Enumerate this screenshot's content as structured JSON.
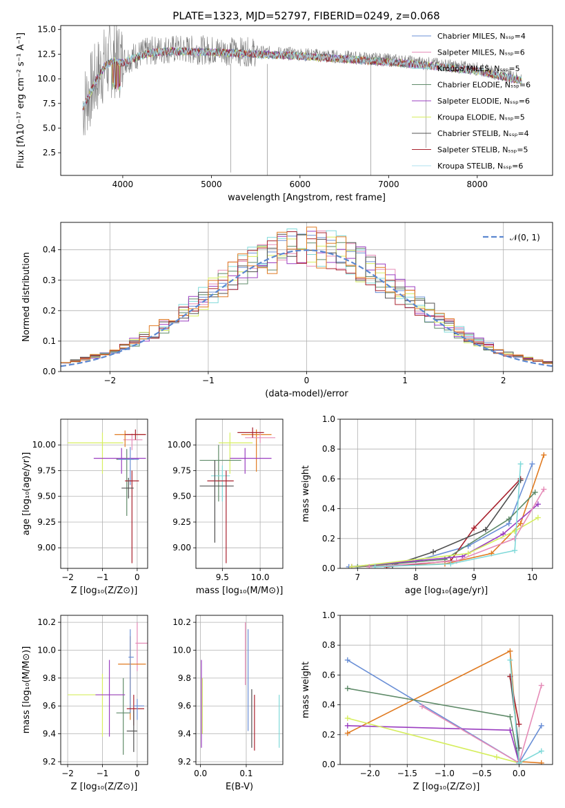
{
  "title": "PLATE=1323, MJD=52797, FIBERID=0249, z=0.068",
  "colors": [
    "#6a8fd6",
    "#e58bb7",
    "#7fd9d9",
    "#5e8a68",
    "#9a3cc0",
    "#d6ee5e",
    "#505050",
    "#a8202c",
    "#aee0ef",
    "#e07a20",
    "#7a7a7a",
    "#f09090"
  ],
  "chart_data": [
    {
      "id": "spectrum",
      "type": "line",
      "title": "PLATE=1323, MJD=52797, FIBERID=0249, z=0.068",
      "xlabel": "wavelength [Angstrom, rest frame]",
      "ylabel": "Flux [fλ10⁻¹⁷ erg cm⁻² s⁻¹ A⁻¹]",
      "xlim": [
        3300,
        8850
      ],
      "ylim": [
        0.2,
        15.4
      ],
      "xticks": [
        4000,
        5000,
        6000,
        7000,
        8000
      ],
      "yticks": [
        2.5,
        5.0,
        7.5,
        10.0,
        12.5,
        15.0
      ],
      "ytick_labels": [
        "2.5",
        "5.0",
        "7.5",
        "10.0",
        "12.5",
        "15.0"
      ],
      "grid": false,
      "legend_placement": "top-right",
      "x_range": [
        3550,
        8500
      ],
      "continuum": {
        "x": [
          3550,
          3620,
          3700,
          3800,
          3900,
          4000,
          4100,
          4300,
          4500,
          5000,
          5500,
          6000,
          6500,
          7000,
          7500,
          8000,
          8500
        ],
        "y": [
          7.2,
          8.5,
          10.0,
          11.5,
          12.0,
          11.8,
          12.2,
          12.8,
          13.0,
          12.9,
          12.7,
          12.5,
          12.2,
          11.9,
          11.5,
          11.0,
          10.0
        ]
      },
      "series": [
        {
          "name": "Chabrier MILES, Nₛₛₚ=4",
          "color": "#6a8fd6"
        },
        {
          "name": "Salpeter MILES, Nₛₛₚ=6",
          "color": "#e58bb7"
        },
        {
          "name": "Kroupa MILES, Nₛₛₚ=5",
          "color": "#7fd9d9"
        },
        {
          "name": "Chabrier ELODIE, Nₛₛₚ=6",
          "color": "#5e8a68"
        },
        {
          "name": "Salpeter ELODIE, Nₛₛₚ=6",
          "color": "#9a3cc0"
        },
        {
          "name": "Kroupa ELODIE, Nₛₛₚ=5",
          "color": "#d6ee5e"
        },
        {
          "name": "Chabrier STELIB, Nₛₛₚ=4",
          "color": "#505050"
        },
        {
          "name": "Salpeter STELIB, Nₛₛₚ=5",
          "color": "#a8202c"
        },
        {
          "name": "Kroupa STELIB, Nₛₛₚ=6",
          "color": "#aee0ef"
        }
      ],
      "data_series": {
        "color": "#7a7a7a"
      }
    },
    {
      "id": "residuals",
      "type": "histogram",
      "xlabel": "(data-model)/error",
      "ylabel": "Normed distribution",
      "xlim": [
        -2.5,
        2.5
      ],
      "ylim": [
        0,
        0.49
      ],
      "xticks": [
        -2,
        -1,
        0,
        1,
        2
      ],
      "xtick_labels": [
        "−2",
        "−1",
        "0",
        "1",
        "2"
      ],
      "yticks": [
        0.0,
        0.1,
        0.2,
        0.3,
        0.4
      ],
      "ytick_labels": [
        "0.0",
        "0.1",
        "0.2",
        "0.3",
        "0.4"
      ],
      "grid": true,
      "legend_placement": "top-right",
      "legend": [
        "𝒩(0, 1)"
      ],
      "bin_width": 0.1,
      "bin_range": [
        -2.5,
        2.5
      ],
      "series_colors": [
        "#6a8fd6",
        "#e58bb7",
        "#7fd9d9",
        "#5e8a68",
        "#9a3cc0",
        "#d6ee5e",
        "#505050",
        "#a8202c",
        "#e07a20"
      ]
    },
    {
      "id": "age_vs_Z",
      "type": "errorbar",
      "xlabel": "Z [log₁₀(Z/Z⊙)]",
      "ylabel": "age  [log₁₀(age/yr)]",
      "xlim": [
        -2.2,
        0.3
      ],
      "ylim": [
        8.8,
        10.25
      ],
      "xticks": [
        -2,
        -1,
        0
      ],
      "xtick_labels": [
        "−2",
        "−1",
        "0"
      ],
      "yticks": [
        9.0,
        9.25,
        9.5,
        9.75,
        10.0
      ],
      "ytick_labels": [
        "9.00",
        "9.25",
        "9.50",
        "9.75",
        "10.00"
      ],
      "grid": true,
      "points": [
        {
          "x": -0.15,
          "y": 10.05,
          "xerr": [
            0.25,
            0.3
          ],
          "yerr": [
            0.1,
            0.06
          ],
          "color": "#e58bb7"
        },
        {
          "x": -0.35,
          "y": 10.1,
          "xerr": [
            0.3,
            0.6
          ],
          "yerr": [
            0.12,
            0.04
          ],
          "color": "#e07a20"
        },
        {
          "x": -0.05,
          "y": 10.1,
          "xerr": [
            0.3,
            0.3
          ],
          "yerr": [
            0.05,
            0.05
          ],
          "color": "#a8202c"
        },
        {
          "x": -1.0,
          "y": 10.02,
          "xerr": [
            1.0,
            0.6
          ],
          "yerr": [
            0.3,
            0.1
          ],
          "color": "#d6ee5e"
        },
        {
          "x": -0.45,
          "y": 9.87,
          "xerr": [
            0.8,
            0.7
          ],
          "yerr": [
            0.15,
            0.1
          ],
          "color": "#9a3cc0"
        },
        {
          "x": -0.3,
          "y": 9.86,
          "xerr": [
            0.3,
            0.2
          ],
          "yerr": [
            0.55,
            0.1
          ],
          "color": "#5e8a68"
        },
        {
          "x": -0.2,
          "y": 9.86,
          "xerr": [
            0.35,
            0.25
          ],
          "yerr": [
            0.25,
            0.12
          ],
          "color": "#6a8fd6"
        },
        {
          "x": -0.15,
          "y": 9.65,
          "xerr": [
            0.2,
            0.2
          ],
          "yerr": [
            0.8,
            0.1
          ],
          "color": "#a8202c"
        },
        {
          "x": -0.25,
          "y": 9.58,
          "xerr": [
            0.2,
            0.15
          ],
          "yerr": [
            0.1,
            0.1
          ],
          "color": "#505050"
        }
      ]
    },
    {
      "id": "age_vs_mass",
      "type": "errorbar",
      "xlabel": "mass [log₁₀(M/M⊙)]",
      "xlim": [
        9.15,
        10.3
      ],
      "ylim": [
        8.8,
        10.25
      ],
      "xticks": [
        9.5,
        10.0
      ],
      "xtick_labels": [
        "9.5",
        "10.0"
      ],
      "yticks": [
        9.0,
        9.25,
        9.5,
        9.75,
        10.0
      ],
      "ytick_labels": [
        "9.00",
        "9.25",
        "9.50",
        "9.75",
        "10.00"
      ],
      "grid": true,
      "points": [
        {
          "x": 9.95,
          "y": 10.1,
          "xerr": [
            0.2,
            0.2
          ],
          "yerr": [
            0.36,
            0.05
          ],
          "color": "#e07a20"
        },
        {
          "x": 10.0,
          "y": 10.07,
          "xerr": [
            0.2,
            0.2
          ],
          "yerr": [
            0.05,
            0.05
          ],
          "color": "#e58bb7"
        },
        {
          "x": 9.9,
          "y": 10.12,
          "xerr": [
            0.2,
            0.15
          ],
          "yerr": [
            0.05,
            0.05
          ],
          "color": "#a8202c"
        },
        {
          "x": 9.6,
          "y": 10.02,
          "xerr": [
            0.15,
            0.3
          ],
          "yerr": [
            0.3,
            0.1
          ],
          "color": "#d6ee5e"
        },
        {
          "x": 9.8,
          "y": 9.87,
          "xerr": [
            0.2,
            0.35
          ],
          "yerr": [
            0.15,
            0.1
          ],
          "color": "#9a3cc0"
        },
        {
          "x": 9.45,
          "y": 9.85,
          "xerr": [
            0.25,
            0.3
          ],
          "yerr": [
            0.4,
            0.15
          ],
          "color": "#5e8a68"
        },
        {
          "x": 9.5,
          "y": 9.7,
          "xerr": [
            0.15,
            0.1
          ],
          "yerr": [
            0.25,
            0.1
          ],
          "color": "#7fd9d9"
        },
        {
          "x": 9.55,
          "y": 9.65,
          "xerr": [
            0.25,
            0.1
          ],
          "yerr": [
            0.8,
            0.1
          ],
          "color": "#a8202c"
        },
        {
          "x": 9.4,
          "y": 9.6,
          "xerr": [
            0.2,
            0.25
          ],
          "yerr": [
            0.55,
            0.25
          ],
          "color": "#505050"
        }
      ]
    },
    {
      "id": "mass_weight_vs_age",
      "type": "line",
      "xlabel": "age  [log₁₀(age/yr)]",
      "ylabel": "mass weight",
      "xlim": [
        6.7,
        10.35
      ],
      "ylim": [
        0.0,
        1.0
      ],
      "xticks": [
        7,
        8,
        9,
        10
      ],
      "xtick_labels": [
        "7",
        "8",
        "9",
        "10"
      ],
      "yticks": [
        0.0,
        0.2,
        0.4,
        0.6,
        0.8,
        1.0
      ],
      "ytick_labels": [
        "0.0",
        "0.2",
        "0.4",
        "0.6",
        "0.8",
        "1.0"
      ],
      "grid": true,
      "series": [
        {
          "color": "#6a8fd6",
          "x": [
            6.85,
            8.0,
            8.9,
            9.6,
            10.0
          ],
          "y": [
            0.01,
            0.05,
            0.15,
            0.3,
            0.7
          ]
        },
        {
          "color": "#e07a20",
          "x": [
            6.9,
            8.5,
            9.3,
            9.8,
            10.2
          ],
          "y": [
            0.01,
            0.03,
            0.1,
            0.3,
            0.76
          ]
        },
        {
          "color": "#a8202c",
          "x": [
            7.5,
            8.6,
            9.0,
            9.8
          ],
          "y": [
            0.01,
            0.05,
            0.27,
            0.6
          ]
        },
        {
          "color": "#505050",
          "x": [
            7.6,
            8.3,
            9.2,
            9.8
          ],
          "y": [
            0.02,
            0.11,
            0.26,
            0.59
          ]
        },
        {
          "color": "#5e8a68",
          "x": [
            7.0,
            8.5,
            9.6,
            10.05
          ],
          "y": [
            0.01,
            0.06,
            0.33,
            0.51
          ]
        },
        {
          "color": "#9a3cc0",
          "x": [
            6.9,
            8.8,
            9.5,
            10.1
          ],
          "y": [
            0.01,
            0.08,
            0.23,
            0.43
          ]
        },
        {
          "color": "#d6ee5e",
          "x": [
            6.9,
            8.9,
            9.7,
            10.1
          ],
          "y": [
            0.01,
            0.1,
            0.25,
            0.34
          ]
        },
        {
          "color": "#e58bb7",
          "x": [
            7.2,
            8.7,
            9.7,
            10.2
          ],
          "y": [
            0.01,
            0.05,
            0.2,
            0.53
          ]
        },
        {
          "color": "#7fd9d9",
          "x": [
            7.3,
            8.6,
            9.7,
            9.8
          ],
          "y": [
            0.01,
            0.03,
            0.12,
            0.7
          ]
        }
      ]
    },
    {
      "id": "mass_vs_Z",
      "type": "errorbar",
      "xlabel": "Z [log₁₀(Z/Z⊙)]",
      "ylabel": "mass [log₁₀(M/M⊙)]",
      "xlim": [
        -2.2,
        0.3
      ],
      "ylim": [
        9.18,
        10.25
      ],
      "xticks": [
        -2,
        -1,
        0
      ],
      "xtick_labels": [
        "−2",
        "−1",
        "0"
      ],
      "yticks": [
        9.2,
        9.4,
        9.6,
        9.8,
        10.0,
        10.2
      ],
      "ytick_labels": [
        "9.2",
        "9.4",
        "9.6",
        "9.8",
        "10.0",
        "10.2"
      ],
      "grid": true,
      "points": [
        {
          "x": 0.0,
          "y": 10.05,
          "xerr": [
            0.05,
            0.3
          ],
          "yerr": [
            0.2,
            0.15
          ],
          "color": "#e58bb7"
        },
        {
          "x": -0.2,
          "y": 9.9,
          "xerr": [
            0.35,
            0.45
          ],
          "yerr": [
            0.4,
            0.2
          ],
          "color": "#e07a20"
        },
        {
          "x": -0.2,
          "y": 9.95,
          "xerr": [
            0.05,
            0.1
          ],
          "yerr": [
            0.4,
            0.2
          ],
          "color": "#6a8fd6"
        },
        {
          "x": -0.4,
          "y": 9.55,
          "xerr": [
            0.2,
            0.2
          ],
          "yerr": [
            0.3,
            0.25
          ],
          "color": "#5e8a68"
        },
        {
          "x": -1.0,
          "y": 9.68,
          "xerr": [
            1.0,
            0.6
          ],
          "yerr": [
            0.3,
            0.15
          ],
          "color": "#d6ee5e"
        },
        {
          "x": -0.8,
          "y": 9.68,
          "xerr": [
            0.4,
            0.45
          ],
          "yerr": [
            0.3,
            0.25
          ],
          "color": "#9a3cc0"
        },
        {
          "x": -0.1,
          "y": 9.58,
          "xerr": [
            0.2,
            0.3
          ],
          "yerr": [
            0.12,
            0.1
          ],
          "color": "#a8202c"
        },
        {
          "x": -0.1,
          "y": 9.42,
          "xerr": [
            0.2,
            0.1
          ],
          "yerr": [
            0.15,
            0.15
          ],
          "color": "#505050"
        },
        {
          "x": 0.0,
          "y": 9.6,
          "xerr": [
            0.1,
            0.2
          ],
          "yerr": [
            0.1,
            0.05
          ],
          "color": "#6a8fd6"
        }
      ]
    },
    {
      "id": "mass_vs_EBV",
      "type": "errorbar",
      "xlabel": "E(B-V)",
      "xlim": [
        -0.01,
        0.18
      ],
      "ylim": [
        9.18,
        10.25
      ],
      "xticks": [
        0.0,
        0.1
      ],
      "xtick_labels": [
        "0.0",
        "0.1"
      ],
      "yticks": [
        9.2,
        9.4,
        9.6,
        9.8,
        10.0,
        10.2
      ],
      "ytick_labels": [
        "9.2",
        "9.4",
        "9.6",
        "9.8",
        "10.0",
        "10.2"
      ],
      "grid": true,
      "bars": [
        {
          "x": 0.098,
          "ylo": 9.75,
          "yhi": 10.2,
          "color": "#e58bb7"
        },
        {
          "x": 0.104,
          "ylo": 9.42,
          "yhi": 10.15,
          "color": "#6a8fd6"
        },
        {
          "x": 0.112,
          "ylo": 9.3,
          "yhi": 9.72,
          "color": "#505050"
        },
        {
          "x": 0.118,
          "ylo": 9.28,
          "yhi": 9.68,
          "color": "#a8202c"
        },
        {
          "x": 0.002,
          "ylo": 9.3,
          "yhi": 9.93,
          "color": "#9a3cc0"
        },
        {
          "x": 0.004,
          "ylo": 9.4,
          "yhi": 9.8,
          "color": "#d6ee5e"
        },
        {
          "x": 0.172,
          "ylo": 9.3,
          "yhi": 9.68,
          "color": "#7fd9d9"
        }
      ]
    },
    {
      "id": "mass_weight_vs_Z",
      "type": "line",
      "xlabel": "Z [log₁₀(Z/Z⊙)]",
      "ylabel": "mass weight",
      "xlim": [
        -2.4,
        0.45
      ],
      "ylim": [
        0.0,
        1.0
      ],
      "xticks": [
        -2.0,
        -1.5,
        -1.0,
        -0.5,
        0.0
      ],
      "xtick_labels": [
        "−2.0",
        "−1.5",
        "−1.0",
        "−0.5",
        "0.0"
      ],
      "yticks": [
        0.0,
        0.2,
        0.4,
        0.6,
        0.8,
        1.0
      ],
      "ytick_labels": [
        "0.0",
        "0.2",
        "0.4",
        "0.6",
        "0.8",
        "1.0"
      ],
      "grid": true,
      "series": [
        {
          "color": "#6a8fd6",
          "x": [
            -2.3,
            0.0,
            0.3
          ],
          "y": [
            0.7,
            0.01,
            0.26
          ]
        },
        {
          "color": "#e07a20",
          "x": [
            -2.3,
            -0.12,
            0.0,
            0.3
          ],
          "y": [
            0.21,
            0.76,
            0.02,
            0.01
          ]
        },
        {
          "color": "#5e8a68",
          "x": [
            -2.3,
            -0.12,
            0.0
          ],
          "y": [
            0.51,
            0.32,
            0.01
          ]
        },
        {
          "color": "#9a3cc0",
          "x": [
            -2.3,
            -0.12,
            0.0
          ],
          "y": [
            0.26,
            0.23,
            0.01
          ]
        },
        {
          "color": "#d6ee5e",
          "x": [
            -2.3,
            -0.3,
            0.0
          ],
          "y": [
            0.31,
            0.05,
            0.01
          ]
        },
        {
          "color": "#e58bb7",
          "x": [
            -1.3,
            0.0,
            0.3
          ],
          "y": [
            0.39,
            0.01,
            0.53
          ]
        },
        {
          "color": "#505050",
          "x": [
            -0.12,
            0.0
          ],
          "y": [
            0.59,
            0.11
          ]
        },
        {
          "color": "#a8202c",
          "x": [
            -0.12,
            0.0
          ],
          "y": [
            0.59,
            0.27
          ]
        },
        {
          "color": "#7fd9d9",
          "x": [
            -0.12,
            0.0,
            0.3
          ],
          "y": [
            0.7,
            0.01,
            0.09
          ]
        }
      ]
    }
  ]
}
